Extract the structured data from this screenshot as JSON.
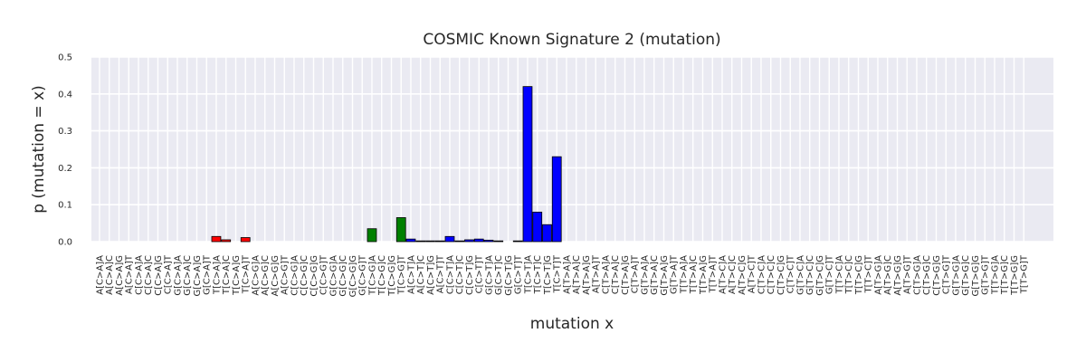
{
  "chart_data": {
    "type": "bar",
    "title": "COSMIC Known Signature 2 (mutation)",
    "xlabel": "mutation x",
    "ylabel": "p (mutation = x)",
    "ylim": [
      0,
      0.5
    ],
    "yticks": [
      "0.0",
      "0.1",
      "0.2",
      "0.3",
      "0.4",
      "0.5"
    ],
    "grid": true,
    "background": "#eaeaf2",
    "colors": {
      "C>A": "#ff0000",
      "C>G": "#008000",
      "C>T": "#0000ff",
      "T>A": "#808080",
      "T>C": "#808080",
      "T>G": "#808080"
    },
    "categories": [
      "A[C>A]A",
      "A[C>A]C",
      "A[C>A]G",
      "A[C>A]T",
      "C[C>A]A",
      "C[C>A]C",
      "C[C>A]G",
      "C[C>A]T",
      "G[C>A]A",
      "G[C>A]C",
      "G[C>A]G",
      "G[C>A]T",
      "T[C>A]A",
      "T[C>A]C",
      "T[C>A]G",
      "T[C>A]T",
      "A[C>G]A",
      "A[C>G]C",
      "A[C>G]G",
      "A[C>G]T",
      "C[C>G]A",
      "C[C>G]C",
      "C[C>G]G",
      "C[C>G]T",
      "G[C>G]A",
      "G[C>G]C",
      "G[C>G]G",
      "G[C>G]T",
      "T[C>G]A",
      "T[C>G]C",
      "T[C>G]G",
      "T[C>G]T",
      "A[C>T]A",
      "A[C>T]C",
      "A[C>T]G",
      "A[C>T]T",
      "C[C>T]A",
      "C[C>T]C",
      "C[C>T]G",
      "C[C>T]T",
      "G[C>T]A",
      "G[C>T]C",
      "G[C>T]G",
      "G[C>T]T",
      "T[C>T]A",
      "T[C>T]C",
      "T[C>T]G",
      "T[C>T]T",
      "A[T>A]A",
      "A[T>A]C",
      "A[T>A]G",
      "A[T>A]T",
      "C[T>A]A",
      "C[T>A]C",
      "C[T>A]G",
      "C[T>A]T",
      "G[T>A]A",
      "G[T>A]C",
      "G[T>A]G",
      "G[T>A]T",
      "T[T>A]A",
      "T[T>A]C",
      "T[T>A]G",
      "T[T>A]T",
      "A[T>C]A",
      "A[T>C]C",
      "A[T>C]G",
      "A[T>C]T",
      "C[T>C]A",
      "C[T>C]C",
      "C[T>C]G",
      "C[T>C]T",
      "G[T>C]A",
      "G[T>C]C",
      "G[T>C]G",
      "G[T>C]T",
      "T[T>C]A",
      "T[T>C]C",
      "T[T>C]G",
      "T[T>C]T",
      "A[T>G]A",
      "A[T>G]C",
      "A[T>G]G",
      "A[T>G]T",
      "C[T>G]A",
      "C[T>G]C",
      "C[T>G]G",
      "C[T>G]T",
      "G[T>G]A",
      "G[T>G]C",
      "G[T>G]G",
      "G[T>G]T",
      "T[T>G]A",
      "T[T>G]C",
      "T[T>G]G",
      "T[T>G]T"
    ],
    "values": [
      0,
      0,
      0,
      0,
      0,
      0,
      0,
      0,
      0,
      0,
      0,
      0,
      0.014,
      0.005,
      0,
      0.011,
      0,
      0,
      0,
      0,
      0,
      0,
      0,
      0,
      0,
      0,
      0,
      0,
      0.035,
      0,
      0,
      0.065,
      0.007,
      0.002,
      0.002,
      0.002,
      0.014,
      0.002,
      0.005,
      0.007,
      0.004,
      0.002,
      0,
      0.002,
      0.42,
      0.08,
      0.046,
      0.23,
      0,
      0,
      0,
      0,
      0,
      0,
      0,
      0,
      0,
      0,
      0,
      0,
      0,
      0,
      0,
      0,
      0,
      0,
      0,
      0,
      0,
      0,
      0,
      0,
      0,
      0,
      0,
      0,
      0,
      0,
      0,
      0,
      0,
      0,
      0,
      0,
      0,
      0,
      0,
      0,
      0,
      0,
      0,
      0,
      0,
      0,
      0,
      0
    ]
  }
}
